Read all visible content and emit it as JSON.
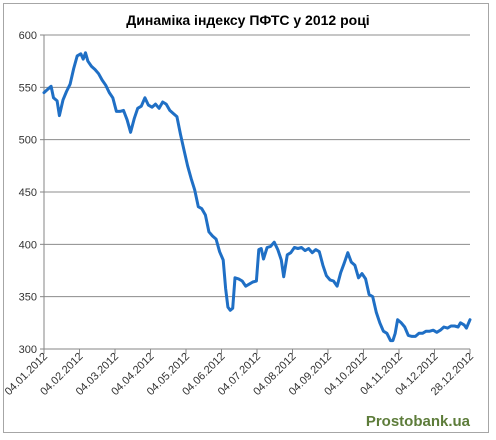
{
  "chart_data": {
    "type": "line",
    "title": "Динаміка індексу ПФТС у 2012 році",
    "xlabel": "",
    "ylabel": "",
    "ylim": [
      300,
      600
    ],
    "y_ticks": [
      300,
      350,
      400,
      450,
      500,
      550,
      600
    ],
    "grid": "horizontal",
    "legend": "none",
    "x_tick_labels": [
      "04.01.2012",
      "04.02.2012",
      "04.03.2012",
      "04.04.2012",
      "04.05.2012",
      "04.06.2012",
      "04.07.2012",
      "04.08.2012",
      "04.09.2012",
      "04.10.2012",
      "04.11.2012",
      "04.12.2012",
      "28.12.2012"
    ],
    "x_start": "2012-01-04",
    "x_end": "2012-12-28",
    "line_color": "#1f6fc5",
    "series": [
      {
        "points": [
          [
            "2012-01-04",
            545
          ],
          [
            "2012-01-07",
            548
          ],
          [
            "2012-01-10",
            551
          ],
          [
            "2012-01-12",
            540
          ],
          [
            "2012-01-15",
            537
          ],
          [
            "2012-01-17",
            523
          ],
          [
            "2012-01-20",
            538
          ],
          [
            "2012-01-23",
            546
          ],
          [
            "2012-01-26",
            553
          ],
          [
            "2012-01-29",
            568
          ],
          [
            "2012-02-01",
            580
          ],
          [
            "2012-02-04",
            582
          ],
          [
            "2012-02-06",
            577
          ],
          [
            "2012-02-08",
            583
          ],
          [
            "2012-02-10",
            575
          ],
          [
            "2012-02-13",
            570
          ],
          [
            "2012-02-16",
            567
          ],
          [
            "2012-02-19",
            563
          ],
          [
            "2012-02-22",
            557
          ],
          [
            "2012-02-25",
            552
          ],
          [
            "2012-02-28",
            545
          ],
          [
            "2012-03-02",
            540
          ],
          [
            "2012-03-05",
            527
          ],
          [
            "2012-03-08",
            527
          ],
          [
            "2012-03-11",
            528
          ],
          [
            "2012-03-14",
            519
          ],
          [
            "2012-03-17",
            507
          ],
          [
            "2012-03-20",
            520
          ],
          [
            "2012-03-23",
            530
          ],
          [
            "2012-03-26",
            532
          ],
          [
            "2012-03-29",
            540
          ],
          [
            "2012-04-01",
            533
          ],
          [
            "2012-04-04",
            531
          ],
          [
            "2012-04-07",
            534
          ],
          [
            "2012-04-10",
            530
          ],
          [
            "2012-04-13",
            536
          ],
          [
            "2012-04-16",
            534
          ],
          [
            "2012-04-19",
            528
          ],
          [
            "2012-04-22",
            525
          ],
          [
            "2012-04-25",
            522
          ],
          [
            "2012-04-28",
            505
          ],
          [
            "2012-05-01",
            490
          ],
          [
            "2012-05-04",
            475
          ],
          [
            "2012-05-07",
            463
          ],
          [
            "2012-05-10",
            452
          ],
          [
            "2012-05-13",
            436
          ],
          [
            "2012-05-16",
            434
          ],
          [
            "2012-05-19",
            428
          ],
          [
            "2012-05-22",
            412
          ],
          [
            "2012-05-25",
            408
          ],
          [
            "2012-05-28",
            405
          ],
          [
            "2012-05-31",
            393
          ],
          [
            "2012-06-03",
            385
          ],
          [
            "2012-06-05",
            358
          ],
          [
            "2012-06-07",
            340
          ],
          [
            "2012-06-09",
            337
          ],
          [
            "2012-06-11",
            339
          ],
          [
            "2012-06-13",
            368
          ],
          [
            "2012-06-16",
            367
          ],
          [
            "2012-06-19",
            365
          ],
          [
            "2012-06-22",
            360
          ],
          [
            "2012-06-25",
            362
          ],
          [
            "2012-06-28",
            364
          ],
          [
            "2012-07-01",
            365
          ],
          [
            "2012-07-03",
            395
          ],
          [
            "2012-07-05",
            396
          ],
          [
            "2012-07-07",
            386
          ],
          [
            "2012-07-10",
            397
          ],
          [
            "2012-07-13",
            398
          ],
          [
            "2012-07-16",
            402
          ],
          [
            "2012-07-19",
            395
          ],
          [
            "2012-07-22",
            385
          ],
          [
            "2012-07-24",
            369
          ],
          [
            "2012-07-27",
            390
          ],
          [
            "2012-07-30",
            392
          ],
          [
            "2012-08-02",
            397
          ],
          [
            "2012-08-05",
            396
          ],
          [
            "2012-08-08",
            397
          ],
          [
            "2012-08-11",
            394
          ],
          [
            "2012-08-14",
            396
          ],
          [
            "2012-08-17",
            392
          ],
          [
            "2012-08-20",
            395
          ],
          [
            "2012-08-23",
            393
          ],
          [
            "2012-08-26",
            380
          ],
          [
            "2012-08-29",
            370
          ],
          [
            "2012-09-01",
            366
          ],
          [
            "2012-09-04",
            365
          ],
          [
            "2012-09-07",
            360
          ],
          [
            "2012-09-10",
            373
          ],
          [
            "2012-09-13",
            382
          ],
          [
            "2012-09-16",
            392
          ],
          [
            "2012-09-19",
            383
          ],
          [
            "2012-09-22",
            380
          ],
          [
            "2012-09-25",
            368
          ],
          [
            "2012-09-28",
            372
          ],
          [
            "2012-10-01",
            367
          ],
          [
            "2012-10-04",
            352
          ],
          [
            "2012-10-07",
            350
          ],
          [
            "2012-10-10",
            335
          ],
          [
            "2012-10-13",
            325
          ],
          [
            "2012-10-16",
            317
          ],
          [
            "2012-10-19",
            315
          ],
          [
            "2012-10-22",
            308
          ],
          [
            "2012-10-24",
            308
          ],
          [
            "2012-10-26",
            315
          ],
          [
            "2012-10-28",
            328
          ],
          [
            "2012-10-31",
            325
          ],
          [
            "2012-11-03",
            321
          ],
          [
            "2012-11-06",
            313
          ],
          [
            "2012-11-09",
            312
          ],
          [
            "2012-11-12",
            312
          ],
          [
            "2012-11-15",
            315
          ],
          [
            "2012-11-18",
            315
          ],
          [
            "2012-11-21",
            317
          ],
          [
            "2012-11-24",
            317
          ],
          [
            "2012-11-27",
            318
          ],
          [
            "2012-11-30",
            316
          ],
          [
            "2012-12-03",
            318
          ],
          [
            "2012-12-06",
            321
          ],
          [
            "2012-12-09",
            320
          ],
          [
            "2012-12-12",
            322
          ],
          [
            "2012-12-15",
            322
          ],
          [
            "2012-12-18",
            321
          ],
          [
            "2012-12-20",
            325
          ],
          [
            "2012-12-23",
            323
          ],
          [
            "2012-12-25",
            320
          ],
          [
            "2012-12-28",
            328
          ]
        ]
      }
    ]
  },
  "watermark": "Prostobank.ua"
}
